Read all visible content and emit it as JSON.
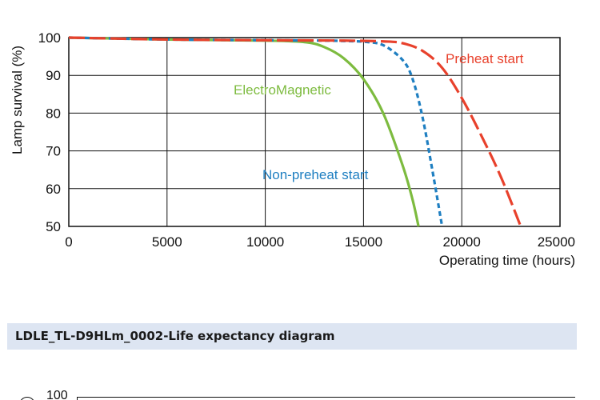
{
  "chart_data": {
    "type": "line",
    "xlabel": "Operating time (hours)",
    "ylabel": "Lamp survival  (%)",
    "xlim": [
      0,
      25000
    ],
    "ylim": [
      50,
      100
    ],
    "x_ticks": [
      "0",
      "5000",
      "10000",
      "15000",
      "20000",
      "25000"
    ],
    "y_ticks": [
      "50",
      "60",
      "70",
      "80",
      "90",
      "100"
    ],
    "grid": true,
    "series": [
      {
        "name": "ElectroMagnetic",
        "color": "#7dbb3f",
        "style": "solid",
        "x": [
          0,
          5000,
          10000,
          12000,
          13000,
          14000,
          15000,
          16000,
          17000,
          17500,
          17800
        ],
        "y": [
          100,
          99.5,
          99.2,
          98.8,
          97.5,
          94.5,
          89,
          80,
          66,
          57,
          50
        ]
      },
      {
        "name": "Non-preheat start",
        "color": "#1f7fc1",
        "style": "dashed",
        "x": [
          0,
          5000,
          10000,
          13000,
          14000,
          15000,
          16000,
          17000,
          17500,
          18000,
          18500,
          19000
        ],
        "y": [
          100,
          99.5,
          99.3,
          99.2,
          99.1,
          98.9,
          98,
          94,
          89,
          79,
          65,
          50
        ]
      },
      {
        "name": "Preheat start",
        "color": "#e8412c",
        "style": "long-dash",
        "x": [
          0,
          5000,
          10000,
          14000,
          16000,
          17000,
          18000,
          19000,
          20000,
          21000,
          22000,
          23000
        ],
        "y": [
          100,
          99.5,
          99.3,
          99.2,
          99,
          98.5,
          96.5,
          92,
          84,
          74,
          63,
          50
        ]
      }
    ]
  },
  "caption": "LDLE_TL-D9HLm_0002-Life expectancy diagram",
  "next_chart": {
    "y_tick_top": "100"
  }
}
